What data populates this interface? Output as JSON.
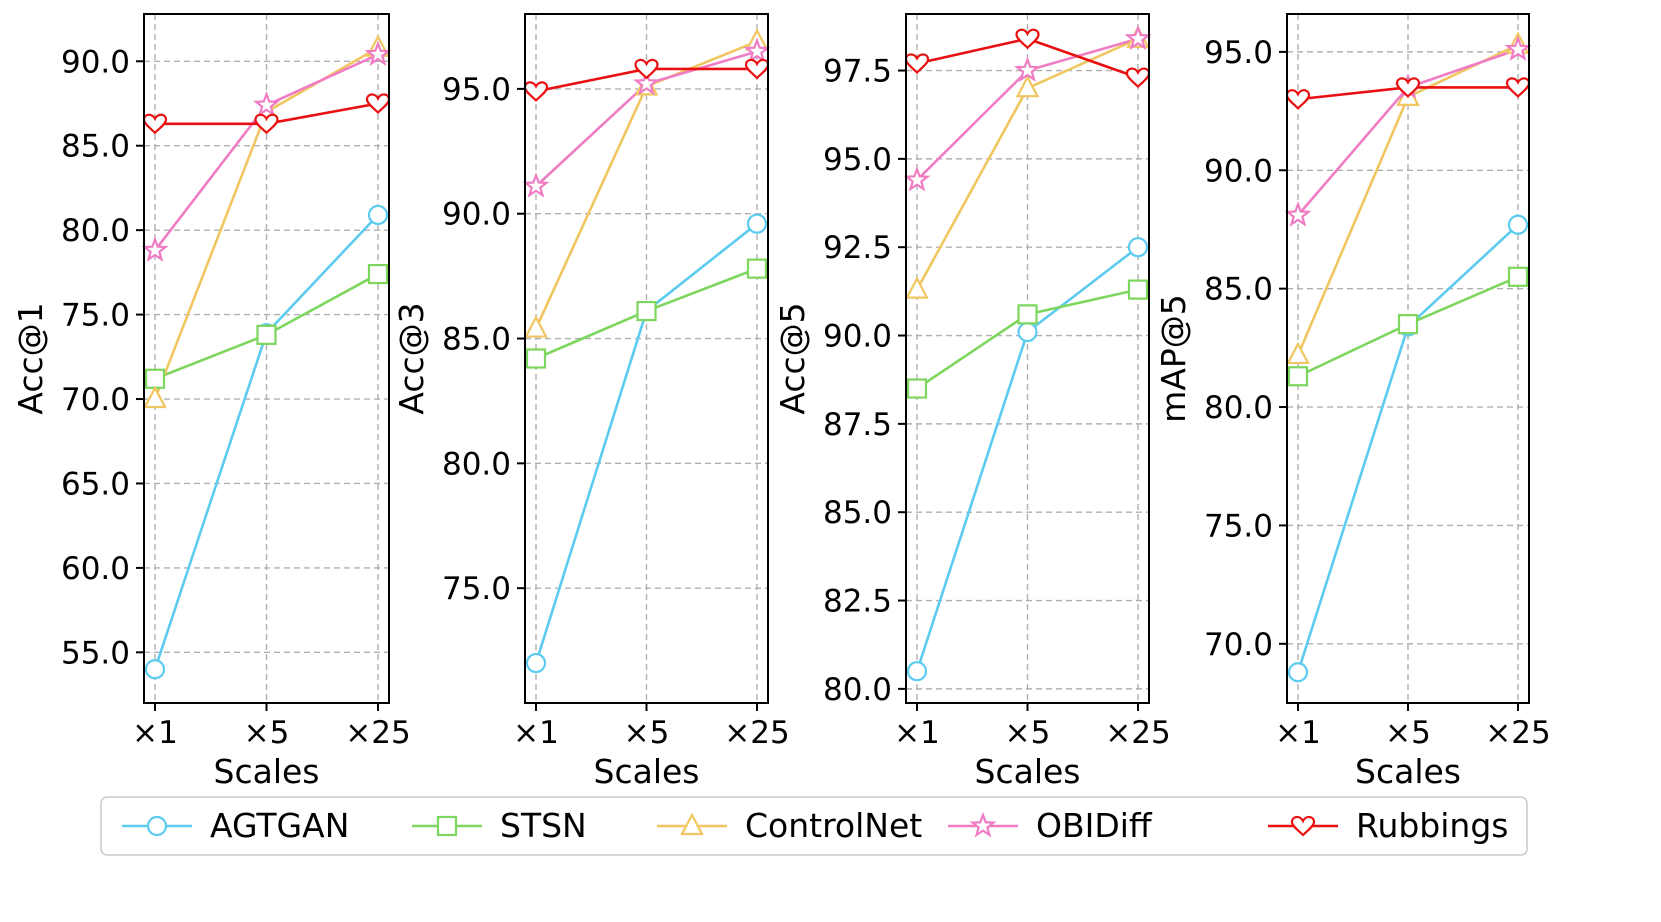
{
  "chart_data": [
    {
      "type": "line",
      "categories": [
        "×1",
        "×5",
        "×25"
      ],
      "xlabel": "Scales",
      "ylabel": "Acc@1",
      "ylim": [
        52.0,
        92.8
      ],
      "yticks": [
        "55.0",
        "60.0",
        "65.0",
        "70.0",
        "75.0",
        "80.0",
        "85.0",
        "90.0"
      ],
      "grid": true,
      "series": [
        {
          "name": "AGTGAN",
          "values": [
            54.0,
            73.9,
            80.9
          ]
        },
        {
          "name": "STSN",
          "values": [
            71.2,
            73.8,
            77.4
          ]
        },
        {
          "name": "ControlNet",
          "values": [
            70.0,
            87.0,
            90.8
          ]
        },
        {
          "name": "OBIDiff",
          "values": [
            78.8,
            87.4,
            90.4
          ]
        },
        {
          "name": "Rubbings",
          "values": [
            86.3,
            86.3,
            87.5
          ]
        }
      ]
    },
    {
      "type": "line",
      "categories": [
        "×1",
        "×5",
        "×25"
      ],
      "xlabel": "Scales",
      "ylabel": "Acc@3",
      "ylim": [
        70.4,
        98.0
      ],
      "yticks": [
        "75.0",
        "80.0",
        "85.0",
        "90.0",
        "95.0"
      ],
      "grid": true,
      "series": [
        {
          "name": "AGTGAN",
          "values": [
            72.0,
            86.1,
            89.6
          ]
        },
        {
          "name": "STSN",
          "values": [
            84.2,
            86.1,
            87.8
          ]
        },
        {
          "name": "ControlNet",
          "values": [
            85.4,
            95.1,
            96.9
          ]
        },
        {
          "name": "OBIDiff",
          "values": [
            91.1,
            95.2,
            96.5
          ]
        },
        {
          "name": "Rubbings",
          "values": [
            94.9,
            95.8,
            95.8
          ]
        }
      ]
    },
    {
      "type": "line",
      "categories": [
        "×1",
        "×5",
        "×25"
      ],
      "xlabel": "Scales",
      "ylabel": "Acc@5",
      "ylim": [
        79.6,
        99.1
      ],
      "yticks": [
        "80.0",
        "82.5",
        "85.0",
        "87.5",
        "90.0",
        "92.5",
        "95.0",
        "97.5"
      ],
      "grid": true,
      "series": [
        {
          "name": "AGTGAN",
          "values": [
            80.5,
            90.1,
            92.5
          ]
        },
        {
          "name": "STSN",
          "values": [
            88.5,
            90.6,
            91.3
          ]
        },
        {
          "name": "ControlNet",
          "values": [
            91.3,
            97.0,
            98.4
          ]
        },
        {
          "name": "OBIDiff",
          "values": [
            94.4,
            97.5,
            98.4
          ]
        },
        {
          "name": "Rubbings",
          "values": [
            97.7,
            98.4,
            97.3
          ]
        }
      ]
    },
    {
      "type": "line",
      "categories": [
        "×1",
        "×5",
        "×25"
      ],
      "xlabel": "Scales",
      "ylabel": "mAP@5",
      "ylim": [
        67.5,
        96.6
      ],
      "yticks": [
        "70.0",
        "75.0",
        "80.0",
        "85.0",
        "90.0",
        "95.0"
      ],
      "grid": true,
      "series": [
        {
          "name": "AGTGAN",
          "values": [
            68.8,
            83.4,
            87.7
          ]
        },
        {
          "name": "STSN",
          "values": [
            81.3,
            83.5,
            85.5
          ]
        },
        {
          "name": "ControlNet",
          "values": [
            82.2,
            93.1,
            95.3
          ]
        },
        {
          "name": "OBIDiff",
          "values": [
            88.1,
            93.5,
            95.1
          ]
        },
        {
          "name": "Rubbings",
          "values": [
            93.0,
            93.5,
            93.5
          ]
        }
      ]
    }
  ],
  "legend": {
    "placement": "bottom",
    "entries": [
      {
        "label": "AGTGAN",
        "color": "#5ccbf0",
        "marker": "circle"
      },
      {
        "label": "STSN",
        "color": "#7dd65e",
        "marker": "square"
      },
      {
        "label": "ControlNet",
        "color": "#f0c660",
        "marker": "triangle"
      },
      {
        "label": "OBIDiff",
        "color": "#f07dc4",
        "marker": "star"
      },
      {
        "label": "Rubbings",
        "color": "#e81010",
        "marker": "heart"
      }
    ]
  }
}
